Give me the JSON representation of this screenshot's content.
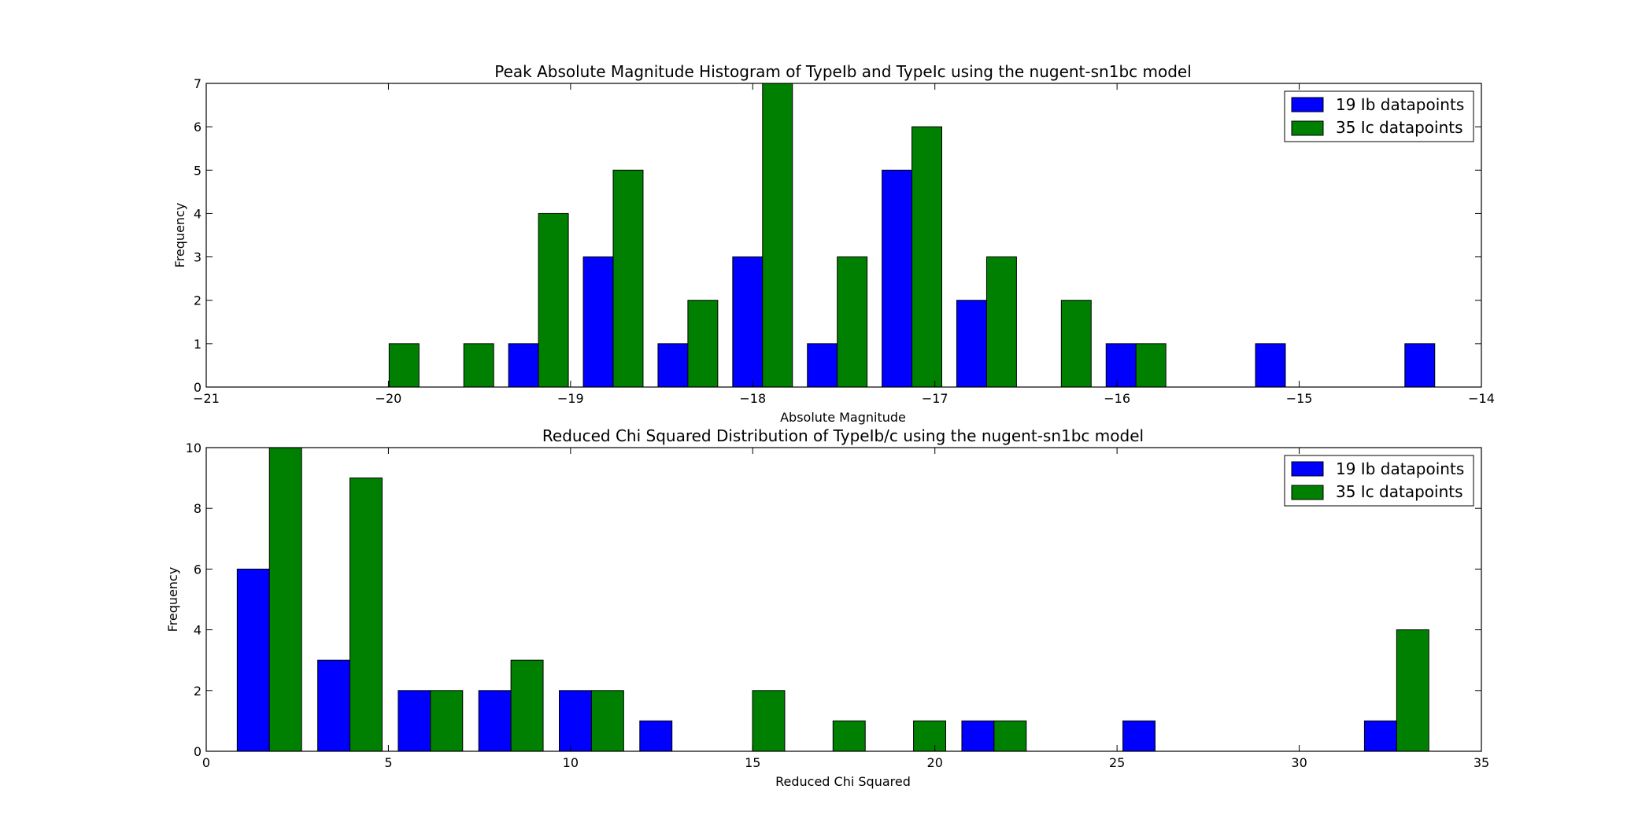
{
  "figure": {
    "background": "#ffffff"
  },
  "chart_data": [
    {
      "type": "bar",
      "title": "Peak Absolute Magnitude Histogram of TypeIb and TypeIc using the nugent-sn1bc model",
      "xlabel": "Absolute Magnitude",
      "ylabel": "Frequency",
      "xlim": [
        -21,
        -14
      ],
      "ylim": [
        0,
        7
      ],
      "xticks": [
        -21,
        -20,
        -19,
        -18,
        -17,
        -16,
        -15,
        -14
      ],
      "xtick_labels": [
        "−21",
        "−20",
        "−19",
        "−18",
        "−17",
        "−16",
        "−15",
        "−14"
      ],
      "yticks": [
        0,
        1,
        2,
        3,
        4,
        5,
        6,
        7
      ],
      "ytick_labels": [
        "0",
        "1",
        "2",
        "3",
        "4",
        "5",
        "6",
        "7"
      ],
      "bin_edges": [
        -20.16,
        -19.75,
        -19.34,
        -18.93,
        -18.52,
        -18.11,
        -17.7,
        -17.29,
        -16.88,
        -16.47,
        -16.06,
        -15.65,
        -15.24,
        -14.83,
        -14.42,
        -14.01
      ],
      "grid": false,
      "legend_position": "top-right",
      "series": [
        {
          "name": "19 Ib datapoints",
          "color": "#0000ff",
          "values": [
            0,
            0,
            1,
            3,
            1,
            3,
            1,
            5,
            2,
            0,
            1,
            0,
            1,
            0,
            1
          ]
        },
        {
          "name": "35 Ic datapoints",
          "color": "#008000",
          "values": [
            1,
            1,
            4,
            5,
            2,
            7,
            3,
            6,
            3,
            2,
            1,
            0,
            0,
            0,
            0
          ]
        }
      ]
    },
    {
      "type": "bar",
      "title": "Reduced Chi Squared Distribution of TypeIb/c using the nugent-sn1bc model",
      "xlabel": "Reduced Chi Squared",
      "ylabel": "Frequency",
      "xlim": [
        0,
        35
      ],
      "ylim": [
        0,
        10
      ],
      "xticks": [
        0,
        5,
        10,
        15,
        20,
        25,
        30,
        35
      ],
      "xtick_labels": [
        "0",
        "5",
        "10",
        "15",
        "20",
        "25",
        "30",
        "35"
      ],
      "yticks": [
        0,
        2,
        4,
        6,
        8,
        10
      ],
      "ytick_labels": [
        "0",
        "2",
        "4",
        "6",
        "8",
        "10"
      ],
      "bin_edges": [
        0.85,
        3.06,
        5.27,
        7.48,
        9.69,
        11.9,
        14.11,
        16.32,
        18.53,
        20.74,
        22.95,
        25.16,
        27.37,
        29.58,
        31.79,
        34.0
      ],
      "grid": false,
      "legend_position": "top-right",
      "series": [
        {
          "name": "19 Ib datapoints",
          "color": "#0000ff",
          "values": [
            6,
            3,
            2,
            2,
            2,
            1,
            0,
            0,
            0,
            1,
            0,
            1,
            0,
            0,
            1
          ]
        },
        {
          "name": "35 Ic datapoints",
          "color": "#008000",
          "values": [
            10,
            9,
            2,
            3,
            2,
            0,
            2,
            1,
            1,
            1,
            0,
            0,
            0,
            0,
            4
          ]
        }
      ]
    }
  ]
}
